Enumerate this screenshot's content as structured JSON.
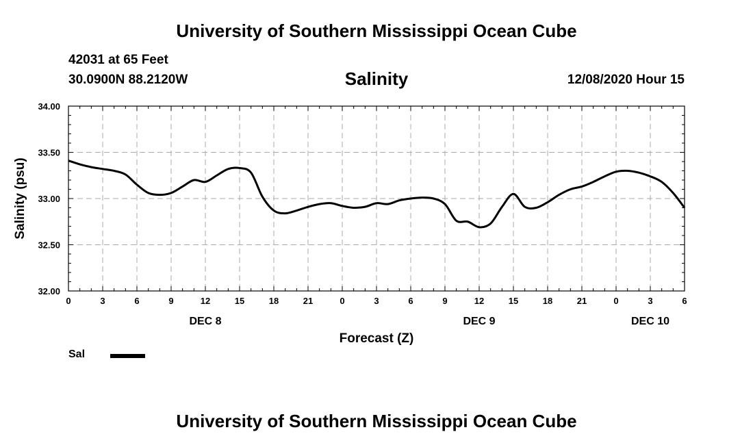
{
  "header": {
    "top_title": "University of Southern Mississippi Ocean Cube",
    "station": "42031 at 65 Feet",
    "coords": "30.0900N 88.2120W",
    "chart_title": "Salinity",
    "datetime": "12/08/2020 Hour 15"
  },
  "footer": {
    "bottom_title": "University of Southern Mississippi Ocean Cube"
  },
  "legend": {
    "label": "Sal",
    "color": "#000000"
  },
  "chart_data": {
    "type": "line",
    "title": "Salinity",
    "xlabel": "Forecast (Z)",
    "ylabel": "Salinity (psu)",
    "xlim": [
      0,
      54
    ],
    "ylim": [
      32.0,
      34.0
    ],
    "grid": true,
    "x_ticks": [
      {
        "x": 0,
        "label": "0"
      },
      {
        "x": 3,
        "label": "3"
      },
      {
        "x": 6,
        "label": "6"
      },
      {
        "x": 9,
        "label": "9"
      },
      {
        "x": 12,
        "label": "12"
      },
      {
        "x": 15,
        "label": "15"
      },
      {
        "x": 18,
        "label": "18"
      },
      {
        "x": 21,
        "label": "21"
      },
      {
        "x": 24,
        "label": "0"
      },
      {
        "x": 27,
        "label": "3"
      },
      {
        "x": 30,
        "label": "6"
      },
      {
        "x": 33,
        "label": "9"
      },
      {
        "x": 36,
        "label": "12"
      },
      {
        "x": 39,
        "label": "15"
      },
      {
        "x": 42,
        "label": "18"
      },
      {
        "x": 45,
        "label": "21"
      },
      {
        "x": 48,
        "label": "0"
      },
      {
        "x": 51,
        "label": "3"
      },
      {
        "x": 54,
        "label": "6"
      }
    ],
    "y_ticks": [
      {
        "y": 32.0,
        "label": "32.00"
      },
      {
        "y": 32.5,
        "label": "32.50"
      },
      {
        "y": 33.0,
        "label": "33.00"
      },
      {
        "y": 33.5,
        "label": "33.50"
      },
      {
        "y": 34.0,
        "label": "34.00"
      }
    ],
    "day_labels": [
      {
        "x": 12,
        "label": "DEC 8"
      },
      {
        "x": 36,
        "label": "DEC 9"
      },
      {
        "x": 51,
        "label": "DEC 10"
      }
    ],
    "series": [
      {
        "name": "Sal",
        "x": [
          0,
          1,
          2,
          3,
          4,
          5,
          6,
          7,
          8,
          9,
          10,
          11,
          12,
          13,
          14,
          15,
          16,
          17,
          18,
          19,
          20,
          21,
          22,
          23,
          24,
          25,
          26,
          27,
          28,
          29,
          30,
          31,
          32,
          33,
          34,
          35,
          36,
          37,
          38,
          39,
          40,
          41,
          42,
          43,
          44,
          45,
          46,
          47,
          48,
          49,
          50,
          51,
          52,
          53,
          54
        ],
        "values": [
          33.41,
          33.37,
          33.34,
          33.32,
          33.3,
          33.26,
          33.15,
          33.06,
          33.04,
          33.06,
          33.13,
          33.2,
          33.18,
          33.25,
          33.32,
          33.33,
          33.28,
          33.02,
          32.87,
          32.84,
          32.87,
          32.91,
          32.94,
          32.95,
          32.92,
          32.9,
          32.91,
          32.95,
          32.94,
          32.98,
          33.0,
          33.01,
          33.0,
          32.94,
          32.76,
          32.75,
          32.69,
          32.73,
          32.91,
          33.05,
          32.91,
          32.9,
          32.96,
          33.04,
          33.1,
          33.13,
          33.18,
          33.24,
          33.29,
          33.3,
          33.28,
          33.24,
          33.18,
          33.06,
          32.9
        ]
      }
    ]
  }
}
